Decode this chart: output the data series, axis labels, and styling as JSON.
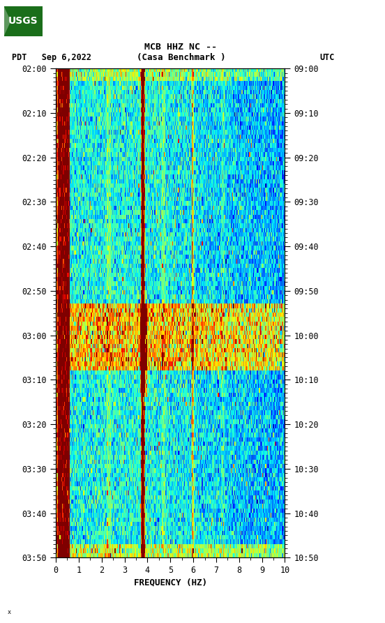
{
  "title_line1": "MCB HHZ NC --",
  "title_line2": "(Casa Benchmark )",
  "date_str": "PDT   Sep 6,2022",
  "utc_str": "UTC",
  "xlabel": "FREQUENCY (HZ)",
  "freq_min": 0,
  "freq_max": 10,
  "freq_ticks": [
    0,
    1,
    2,
    3,
    4,
    5,
    6,
    7,
    8,
    9,
    10
  ],
  "time_tick_labels_left": [
    "02:00",
    "02:10",
    "02:20",
    "02:30",
    "02:40",
    "02:50",
    "03:00",
    "03:10",
    "03:20",
    "03:30",
    "03:40",
    "03:50"
  ],
  "time_tick_labels_right": [
    "09:00",
    "09:10",
    "09:20",
    "09:30",
    "09:40",
    "09:50",
    "10:00",
    "10:10",
    "10:20",
    "10:30",
    "10:40",
    "10:50"
  ],
  "bg_color": "#ffffff",
  "colormap": "jet",
  "fig_width": 5.52,
  "fig_height": 8.93,
  "dpi": 100,
  "usgs_green": "#1a6e1a",
  "vmin": -1.2,
  "vmax": 2.8,
  "seed": 12345,
  "n_time": 110,
  "n_freq": 300
}
